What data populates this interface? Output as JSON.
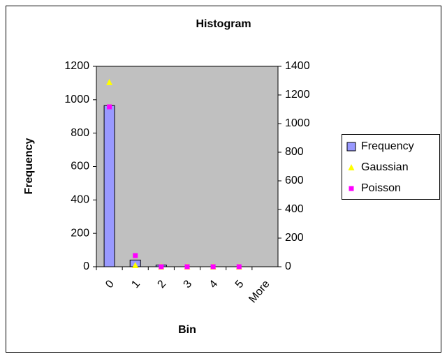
{
  "chart_data": {
    "type": "bar",
    "title": "Histogram",
    "x_label": "Bin",
    "y_label": "Frequency",
    "categories": [
      "0",
      "1",
      "2",
      "3",
      "4",
      "5",
      "More"
    ],
    "series": [
      {
        "name": "Frequency",
        "type": "bar",
        "color": "#9999ff",
        "values": [
          965,
          40,
          10,
          0,
          0,
          0,
          0
        ]
      },
      {
        "name": "Gaussian",
        "type": "scatter",
        "marker": "triangle",
        "axis": "y2",
        "color": "#ffff00",
        "values": [
          1288,
          10,
          0,
          0,
          0,
          0,
          null
        ]
      },
      {
        "name": "Poisson",
        "type": "scatter",
        "marker": "square",
        "axis": "y2",
        "color": "#ff00ff",
        "values": [
          1117,
          78,
          0,
          0,
          0,
          0,
          null
        ]
      }
    ],
    "ylim": [
      0,
      1200
    ],
    "yticks": [
      0,
      200,
      400,
      600,
      800,
      1000,
      1200
    ],
    "y2lim": [
      0,
      1400
    ],
    "y2ticks": [
      0,
      200,
      400,
      600,
      800,
      1000,
      1200,
      1400
    ],
    "plot_background": "#c0c0c0",
    "legend": "right"
  }
}
